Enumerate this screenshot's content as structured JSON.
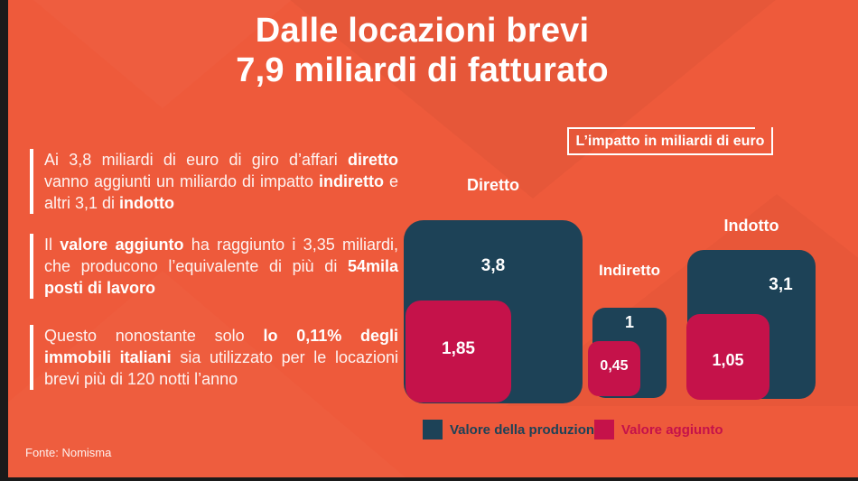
{
  "colors": {
    "background": "#EE5A3B",
    "navy": "#1D4257",
    "crimson": "#C5124A",
    "white": "#FFFFFF",
    "frame_black": "#1A1A1A"
  },
  "title": {
    "line1": "Dalle locazioni brevi",
    "line2": "7,9 miliardi di fatturato"
  },
  "bullets": [
    {
      "segments": [
        {
          "text": "Ai 3,8 miliardi di euro di giro d’affari ",
          "bold": false
        },
        {
          "text": "diretto",
          "bold": true
        },
        {
          "text": " vanno aggiunti un miliardo di impatto ",
          "bold": false
        },
        {
          "text": "indiretto",
          "bold": true
        },
        {
          "text": " e altri 3,1 di ",
          "bold": false
        },
        {
          "text": "indotto",
          "bold": true
        }
      ]
    },
    {
      "segments": [
        {
          "text": "Il ",
          "bold": false
        },
        {
          "text": "valore aggiunto",
          "bold": true
        },
        {
          "text": " ha raggiunto i 3,35 miliardi, che producono l’equivalente di più di ",
          "bold": false
        },
        {
          "text": "54mila posti di lavoro",
          "bold": true
        }
      ]
    },
    {
      "segments": [
        {
          "text": "Questo nonostante solo ",
          "bold": false
        },
        {
          "text": "lo 0,11% degli immobili italiani",
          "bold": true
        },
        {
          "text": " sia utilizzato per le locazioni brevi più di 120 notti l’anno",
          "bold": false
        }
      ]
    }
  ],
  "chart": {
    "box_title": "L’impatto in miliardi di euro",
    "groups": [
      {
        "label": "Diretto",
        "production_label": "3,8",
        "added_label": "1,85"
      },
      {
        "label": "Indiretto",
        "production_label": "1",
        "added_label": "0,45"
      },
      {
        "label": "Indotto",
        "production_label": "3,1",
        "added_label": "1,05"
      }
    ]
  },
  "chart_data": {
    "type": "nested-squares-area",
    "title": "L’impatto in miliardi di euro",
    "unit": "miliardi di euro",
    "categories": [
      "Diretto",
      "Indiretto",
      "Indotto"
    ],
    "series": [
      {
        "name": "Valore della produzione",
        "values": [
          3.8,
          1,
          3.1
        ],
        "color": "#1D4257"
      },
      {
        "name": "Valore aggiunto",
        "values": [
          1.85,
          0.45,
          1.05
        ],
        "color": "#C5124A"
      }
    ],
    "total_production": 7.9,
    "legend_position": "bottom",
    "layout_note": "square area encodes value; added-value square nested at bottom-left of production square"
  },
  "footer": {
    "source": "Fonte: Nomisma"
  }
}
